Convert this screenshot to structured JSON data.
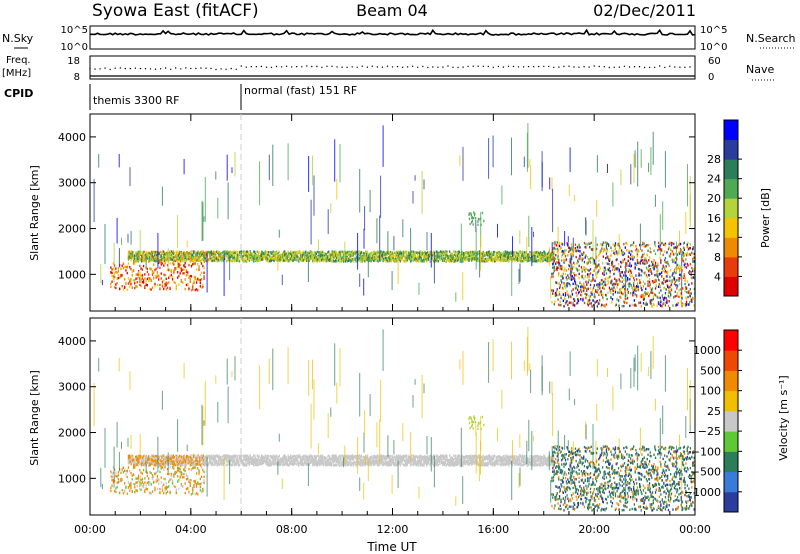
{
  "header": {
    "title_left": "Syowa East (fitACF)",
    "title_center": "Beam 04",
    "title_right": "02/Dec/2011"
  },
  "top_panels": {
    "nsky_label": "N.Sky",
    "nsky_ticks": [
      "10^5",
      "10^0"
    ],
    "nsearch_label": "N.Search",
    "nsearch_ticks": [
      "10^5",
      "10^0"
    ],
    "freq_label": "Freq.",
    "freq_unit": "[MHz]",
    "freq_ticks": [
      "18",
      "8"
    ],
    "nave_label": "Nave",
    "nave_ticks": [
      "60",
      "0"
    ],
    "cpid_label": "CPID",
    "cpid_segments": [
      "themis 3300 RF",
      "normal (fast) 151 RF"
    ]
  },
  "colors": {
    "power_scale": [
      "#0000ff",
      "#2a3d9e",
      "#2e7d5a",
      "#4faa55",
      "#b5d33a",
      "#f5c400",
      "#f08a00",
      "#e83c0c",
      "#e00000"
    ],
    "velocity_scale": [
      "#2a3d9e",
      "#3a7ad8",
      "#2e7d5a",
      "#5fc837",
      "#c8c8c8",
      "#f0c000",
      "#f08a00",
      "#f04800",
      "#ff0000"
    ]
  },
  "chart_data": [
    {
      "type": "heatmap",
      "name": "power",
      "ylabel": "Slant Range [km]",
      "xlabel": "Time UT",
      "x_ticks": [
        "00:00",
        "04:00",
        "08:00",
        "12:00",
        "16:00",
        "20:00",
        "00:00"
      ],
      "y_ticks": [
        "1000",
        "2000",
        "3000",
        "4000"
      ],
      "ylim": [
        200,
        4500
      ],
      "xlim_hours": [
        0,
        24
      ],
      "colorbar_label": "Power [dB]",
      "colorbar_ticks": [
        "4",
        "8",
        "12",
        "16",
        "20",
        "24",
        "28"
      ],
      "colorbar_range": [
        0,
        32
      ],
      "echo_band": {
        "range_km": [
          1250,
          1450
        ],
        "hours": [
          2,
          18.3
        ]
      }
    },
    {
      "type": "heatmap",
      "name": "velocity",
      "ylabel": "Slant Range [km]",
      "xlabel": "Time UT",
      "x_ticks": [
        "00:00",
        "04:00",
        "08:00",
        "12:00",
        "16:00",
        "20:00",
        "00:00"
      ],
      "y_ticks": [
        "1000",
        "2000",
        "3000",
        "4000"
      ],
      "ylim": [
        200,
        4500
      ],
      "xlim_hours": [
        0,
        24
      ],
      "colorbar_label": "Velocity [m s⁻¹]",
      "colorbar_ticks": [
        "1000",
        "500",
        "100",
        "25",
        "−25",
        "−100",
        "−500",
        "−1000"
      ]
    }
  ],
  "axis": {
    "xlabel": "Time UT"
  }
}
